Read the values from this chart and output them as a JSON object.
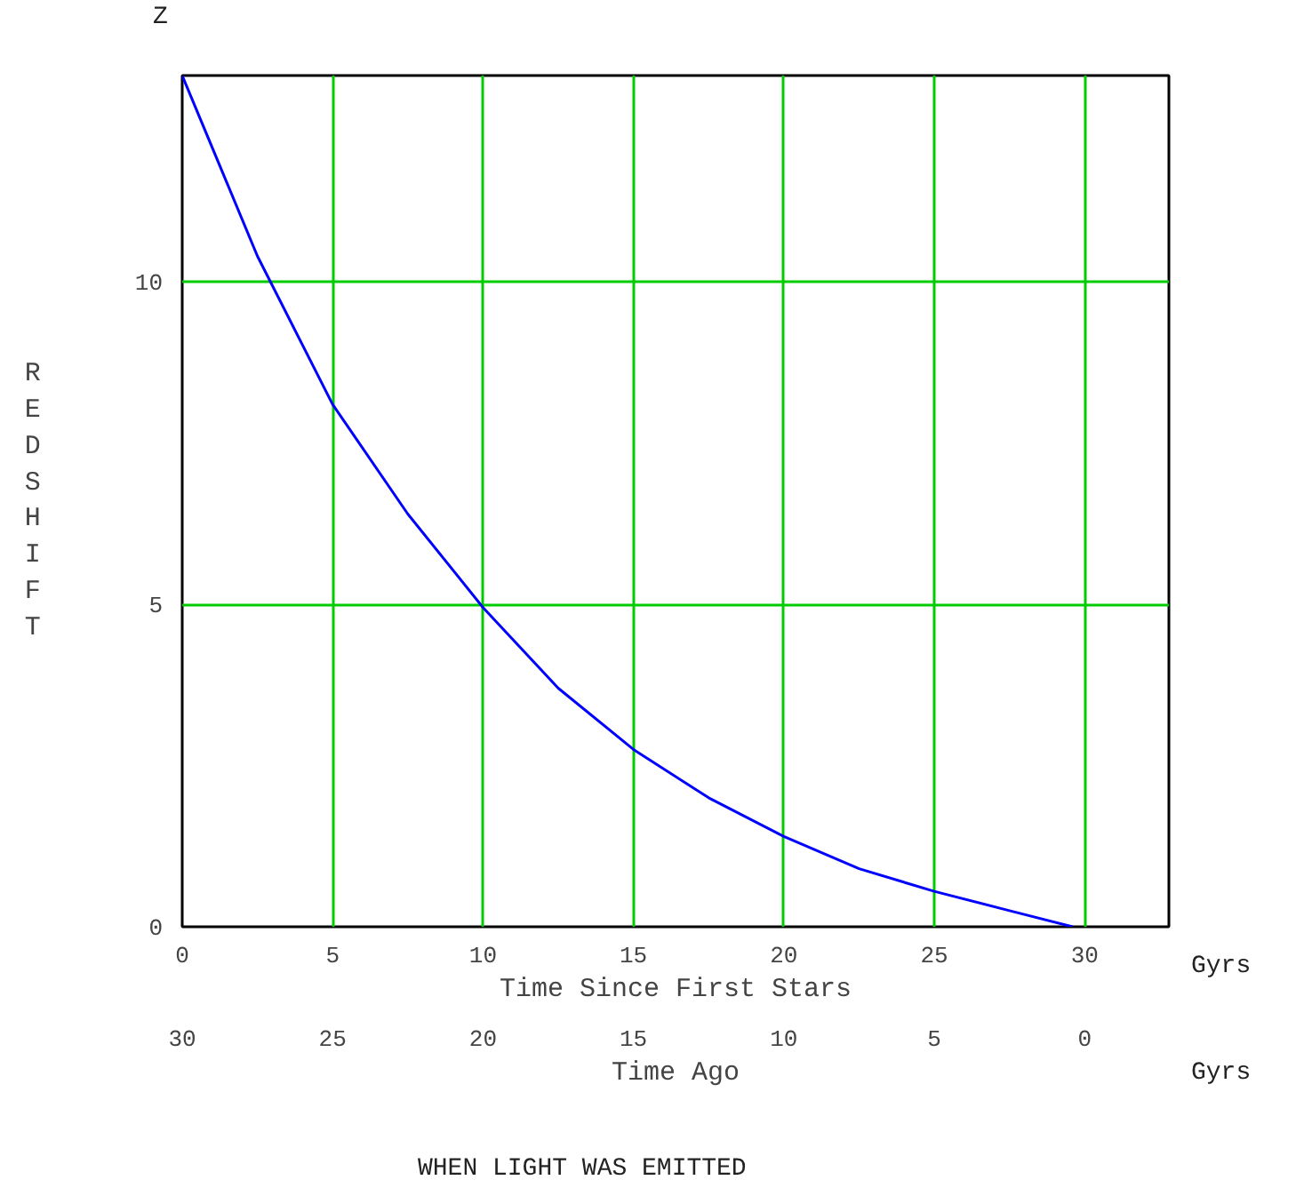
{
  "chart_data": {
    "type": "line",
    "ylabel": "REDSHIFT",
    "xlabel": "Time Since First Stars",
    "x2label": "Time Ago",
    "annotations": [
      "Z",
      "Gyrs",
      "Gyrs",
      "WHEN LIGHT WAS EMITTED"
    ],
    "x": [
      0,
      2.5,
      5,
      7.5,
      10,
      12.5,
      15,
      17.5,
      20,
      22.5,
      25,
      27.5,
      29.6
    ],
    "series": [
      {
        "color": "#0000ff",
        "values": [
          13.2,
          10.4,
          8.1,
          6.4,
          4.95,
          3.7,
          2.75,
          2.0,
          1.4,
          0.9,
          0.55,
          0.25,
          0
        ]
      }
    ],
    "xlim": [
      0,
      32.8
    ],
    "xticks": [
      0,
      5,
      10,
      15,
      20,
      25,
      30
    ],
    "x2lim": [
      30,
      -2.8
    ],
    "x2ticks": [
      30,
      25,
      20,
      15,
      10,
      5,
      0
    ],
    "ylim": [
      0,
      13.2
    ],
    "yticks": [
      0,
      5,
      10
    ],
    "grid": true
  }
}
